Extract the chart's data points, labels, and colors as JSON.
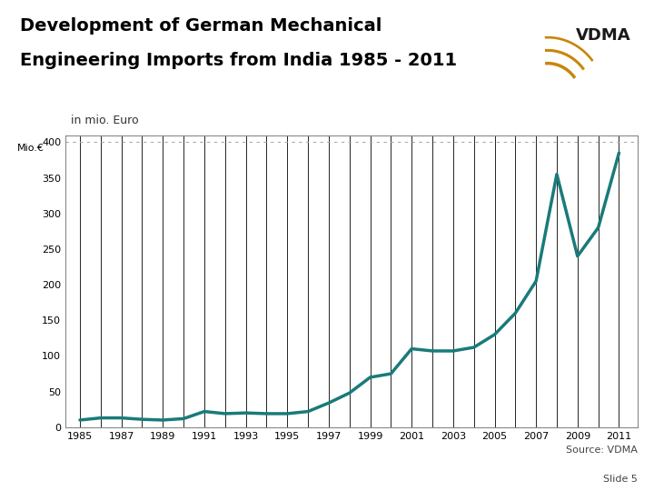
{
  "title_line1": "Development of German Mechanical",
  "title_line2": "Engineering Imports from India 1985 - 2011",
  "subtitle": "in mio. Euro",
  "ylabel": "Mio.€",
  "source": "Source: VDMA",
  "slide": "Slide 5",
  "years": [
    1985,
    1986,
    1987,
    1988,
    1989,
    1990,
    1991,
    1992,
    1993,
    1994,
    1995,
    1996,
    1997,
    1998,
    1999,
    2000,
    2001,
    2002,
    2003,
    2004,
    2005,
    2006,
    2007,
    2008,
    2009,
    2010,
    2011
  ],
  "values": [
    10,
    13,
    13,
    11,
    10,
    12,
    22,
    19,
    20,
    19,
    19,
    22,
    34,
    48,
    70,
    75,
    110,
    107,
    107,
    112,
    130,
    160,
    205,
    355,
    240,
    280,
    385
  ],
  "line_color": "#1a7a7a",
  "line_width": 2.5,
  "background_color": "#ffffff",
  "chart_bg_color": "#ffffff",
  "dotted_line_color": "#aaaaaa",
  "vline_color": "#000000",
  "border_color": "#888888",
  "ylim": [
    0,
    410
  ],
  "yticks": [
    0,
    50,
    100,
    150,
    200,
    250,
    300,
    350,
    400
  ],
  "title_fontsize": 14,
  "subtitle_fontsize": 9,
  "tick_fontsize": 8,
  "ylabel_fontsize": 8,
  "source_fontsize": 8,
  "slide_fontsize": 8
}
